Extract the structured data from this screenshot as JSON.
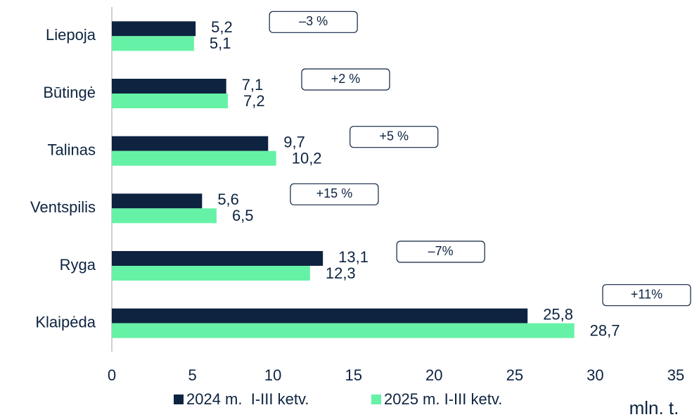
{
  "chart_data": {
    "type": "bar",
    "orientation": "horizontal",
    "categories": [
      "Liepoja",
      "Būtingė",
      "Talinas",
      "Ventspilis",
      "Ryga",
      "Klaipėda"
    ],
    "series": [
      {
        "name": "2024 m.  I-III ketv.",
        "color": "#0d2340",
        "values": [
          5.2,
          7.1,
          9.7,
          5.6,
          13.1,
          25.8
        ],
        "value_labels": [
          "5,2",
          "7,1",
          "9,7",
          "5,6",
          "13,1",
          "25,8"
        ]
      },
      {
        "name": "2025 m. I-III ketv.",
        "color": "#66f2a6",
        "values": [
          5.1,
          7.2,
          10.2,
          6.5,
          12.3,
          28.7
        ],
        "value_labels": [
          "5,1",
          "7,2",
          "10,2",
          "6,5",
          "12,3",
          "28,7"
        ]
      }
    ],
    "change_labels": [
      "–3 %",
      "+2 %",
      "+5 %",
      "+15 %",
      "–7%",
      "+11%"
    ],
    "xlim": [
      0,
      35
    ],
    "xticks": [
      0,
      5,
      10,
      15,
      20,
      25,
      30,
      35
    ],
    "x_unit": "mln. t.",
    "legend": "bottom"
  }
}
